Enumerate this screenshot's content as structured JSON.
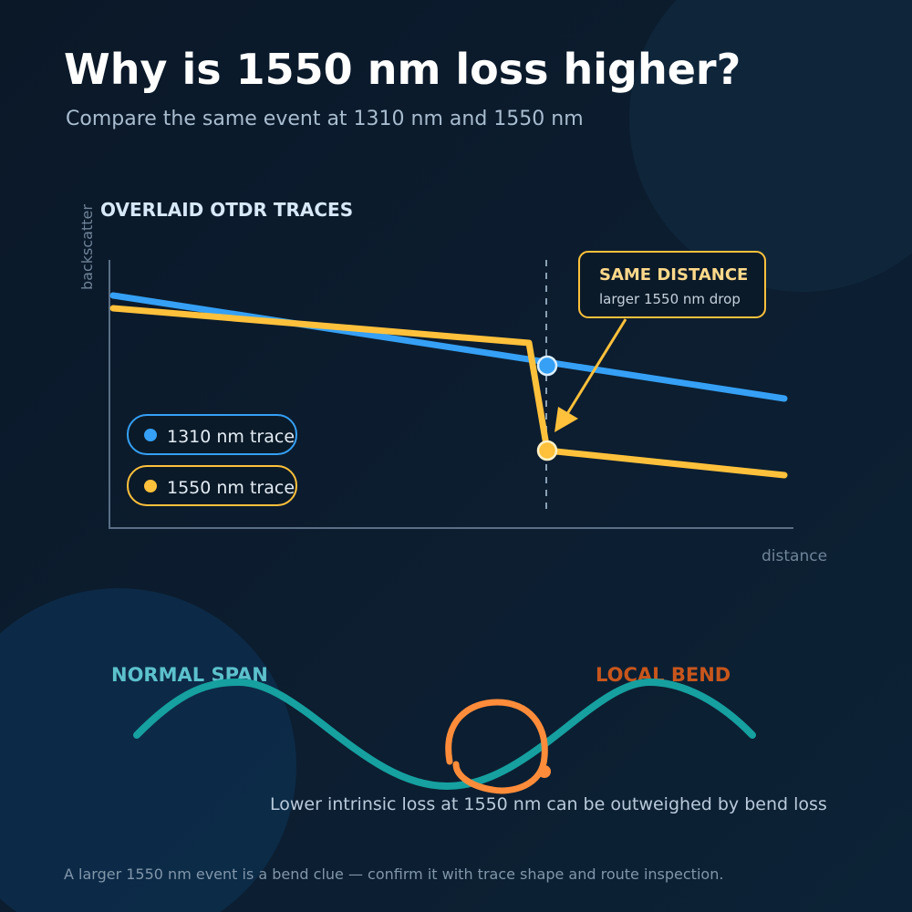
{
  "header": {
    "title": "Why is 1550 nm loss higher?",
    "subtitle": "Compare the same event at 1310 nm and 1550 nm"
  },
  "panel": {
    "title": "OVERLAID OTDR TRACES",
    "y_label": "backscatter",
    "x_label": "distance",
    "legend": [
      "1310 nm trace",
      "1550 nm trace"
    ],
    "callout": {
      "title": "SAME DISTANCE",
      "text": "larger 1550 nm drop"
    }
  },
  "bend": {
    "left_label": "NORMAL SPAN",
    "right_label": "LOCAL BEND",
    "caption": "Lower intrinsic loss at 1550 nm can be outweighed by bend loss"
  },
  "footer": "A larger 1550 nm event is a bend clue — confirm it with trace shape and route inspection."
}
